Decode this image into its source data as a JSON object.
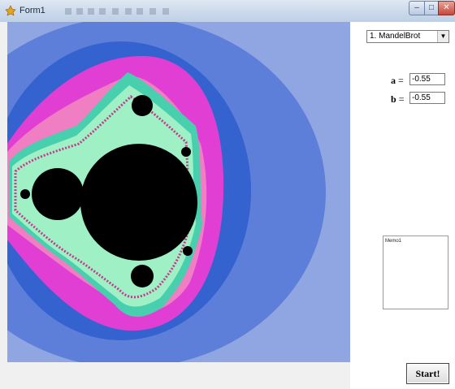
{
  "window": {
    "title": "Form1"
  },
  "controls": {
    "fractal_select": {
      "value": "1. MandelBrot"
    },
    "a": {
      "label": "a",
      "value": "-0.55"
    },
    "b": {
      "label": "b",
      "value": "-0.55"
    },
    "memo": {
      "text": "Memo1"
    },
    "start_label": "Start!"
  },
  "fractal_colors": {
    "outer": "#8fa6e3",
    "ring1": "#5d7fd9",
    "ring2": "#3463cf",
    "magenta": "#e13fd4",
    "pink": "#ef7fc2",
    "teal": "#47cfae",
    "mint": "#9ff0c4",
    "set": "#000000"
  }
}
